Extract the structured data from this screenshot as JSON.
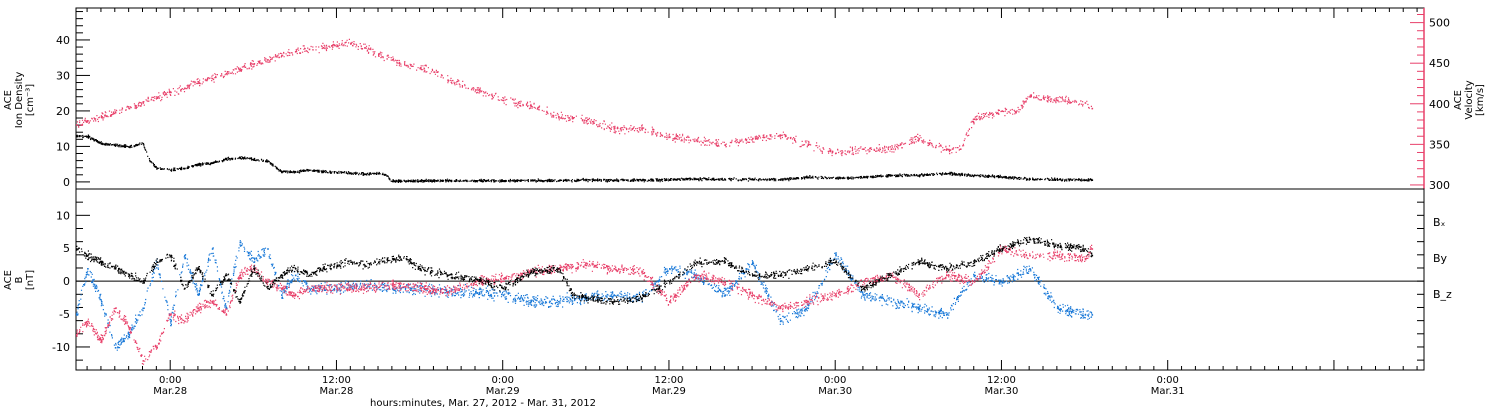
{
  "figure": {
    "xlabel": "hours:minutes, Mar. 27, 2012 - Mar. 31, 2012",
    "time_range_hours": [
      -6.8,
      90.5
    ]
  },
  "x_ticks": [
    {
      "t": 0,
      "time": "0:00",
      "date": "Mar.28"
    },
    {
      "t": 12,
      "time": "12:00",
      "date": "Mar.28"
    },
    {
      "t": 24,
      "time": "0:00",
      "date": "Mar.29"
    },
    {
      "t": 36,
      "time": "12:00",
      "date": "Mar.29"
    },
    {
      "t": 48,
      "time": "0:00",
      "date": "Mar.30"
    },
    {
      "t": 60,
      "time": "12:00",
      "date": "Mar.30"
    },
    {
      "t": 72,
      "time": "0:00",
      "date": "Mar.31"
    }
  ],
  "colors": {
    "black": "#000000",
    "red": "#e8406a",
    "blue": "#1878d8",
    "axis": "#000000"
  },
  "chart_data": [
    {
      "type": "scatter",
      "panel": "top",
      "ylabel": [
        "ACE",
        "Ion Density",
        "[cm⁻³]"
      ],
      "ylim": [
        -2,
        49
      ],
      "yticks": [
        0,
        10,
        20,
        30,
        40
      ],
      "right_axis": {
        "ylabel": [
          "ACE",
          "Velocity",
          "[km/s]"
        ],
        "ylim": [
          295,
          518
        ],
        "yticks": [
          300,
          350,
          400,
          450,
          500
        ]
      },
      "series": [
        {
          "color": "black",
          "axis": "left",
          "x": [
            -6.8,
            -6.0,
            -5.0,
            -4.0,
            -3.0,
            -2.0,
            -1.5,
            -1.0,
            0.0,
            1.0,
            2.0,
            3.0,
            4.0,
            5.0,
            6.0,
            7.0,
            8.0,
            9.0,
            10.0,
            11.0,
            12.0,
            13.0,
            14.0,
            15.0,
            15.5,
            16.0,
            18.0,
            20.0,
            22.0,
            24.0,
            26.0,
            28.0,
            30.0,
            32.0,
            34.0,
            36.0,
            38.0,
            40.0,
            42.0,
            44.0,
            46.0,
            48.0,
            50.0,
            52.0,
            54.0,
            56.0,
            58.0,
            60.0,
            62.0,
            64.0,
            66.0,
            66.5
          ],
          "y": [
            13.0,
            13.0,
            11.0,
            10.5,
            10.0,
            11.0,
            6.0,
            4.0,
            3.5,
            4.0,
            5.0,
            5.5,
            6.5,
            7.0,
            6.5,
            6.0,
            3.0,
            3.0,
            3.5,
            3.0,
            2.8,
            2.6,
            2.4,
            2.5,
            2.2,
            0.4,
            0.4,
            0.5,
            0.5,
            0.5,
            0.6,
            0.5,
            0.7,
            0.6,
            0.6,
            0.8,
            1.0,
            0.9,
            0.9,
            0.8,
            1.5,
            1.2,
            1.5,
            2.0,
            2.0,
            2.5,
            2.0,
            1.5,
            1.0,
            0.8,
            0.7,
            0.7
          ]
        },
        {
          "color": "red",
          "axis": "right",
          "x": [
            -6.8,
            -6.0,
            -5.0,
            -4.0,
            -3.0,
            -2.0,
            -1.0,
            0.0,
            1.0,
            2.0,
            3.0,
            4.0,
            5.0,
            6.0,
            7.0,
            8.0,
            9.0,
            10.0,
            11.0,
            12.0,
            13.0,
            14.0,
            15.0,
            16.0,
            17.0,
            18.0,
            19.0,
            20.0,
            22.0,
            24.0,
            26.0,
            28.0,
            30.0,
            32.0,
            34.0,
            36.0,
            38.0,
            40.0,
            42.0,
            44.0,
            46.0,
            48.0,
            50.0,
            52.0,
            54.0,
            56.0,
            57.0,
            58.0,
            60.0,
            61.0,
            62.0,
            64.0,
            66.0,
            66.5
          ],
          "y": [
            375,
            380,
            385,
            390,
            395,
            402,
            408,
            415,
            420,
            428,
            432,
            438,
            442,
            450,
            455,
            460,
            465,
            468,
            470,
            472,
            475,
            470,
            462,
            455,
            448,
            445,
            440,
            430,
            418,
            405,
            398,
            385,
            380,
            370,
            370,
            360,
            355,
            350,
            358,
            362,
            350,
            340,
            345,
            345,
            358,
            345,
            345,
            382,
            392,
            390,
            410,
            405,
            402,
            395
          ]
        }
      ]
    },
    {
      "type": "scatter",
      "panel": "bottom",
      "ylabel": [
        "ACE",
        "B",
        "[nT]"
      ],
      "ylim": [
        -13.5,
        14
      ],
      "yticks": [
        -10,
        -5,
        0,
        5,
        10
      ],
      "legend_position": "right",
      "series": [
        {
          "name": "Bₓ",
          "color": "black",
          "x": [
            -6.8,
            -6.0,
            -5.0,
            -4.0,
            -3.0,
            -2.0,
            -1.0,
            0.0,
            1.0,
            2.0,
            3.0,
            4.0,
            5.0,
            6.0,
            7.0,
            8.0,
            9.0,
            10.0,
            11.0,
            12.0,
            13.0,
            14.0,
            15.0,
            16.0,
            17.0,
            18.0,
            20.0,
            22.0,
            24.0,
            26.0,
            28.0,
            29.0,
            30.0,
            32.0,
            34.0,
            36.0,
            38.0,
            40.0,
            42.0,
            44.0,
            46.0,
            48.0,
            50.0,
            52.0,
            54.0,
            56.0,
            58.0,
            60.0,
            62.0,
            64.0,
            66.0,
            66.5
          ],
          "y": [
            5.0,
            4.0,
            3.0,
            2.0,
            1.0,
            0.0,
            3.0,
            4.0,
            -1.0,
            2.0,
            -2.0,
            1.0,
            -3.0,
            2.0,
            -1.0,
            1.0,
            2.0,
            1.0,
            2.0,
            2.5,
            3.0,
            2.5,
            3.0,
            3.5,
            3.5,
            2.0,
            1.0,
            0.5,
            -1.0,
            1.5,
            2.0,
            -2.0,
            -2.5,
            -3.0,
            -2.5,
            0.0,
            3.0,
            3.0,
            1.0,
            1.0,
            2.0,
            3.0,
            -1.0,
            1.0,
            3.0,
            2.0,
            3.0,
            5.0,
            6.5,
            5.5,
            5.0,
            4.0
          ]
        },
        {
          "name": "By",
          "color": "blue",
          "x": [
            -6.8,
            -6.0,
            -5.0,
            -4.0,
            -3.0,
            -2.0,
            -1.0,
            0.0,
            1.0,
            2.0,
            3.0,
            4.0,
            5.0,
            6.0,
            7.0,
            8.0,
            9.0,
            10.0,
            12.0,
            14.0,
            16.0,
            18.0,
            20.0,
            22.0,
            24.0,
            26.0,
            28.0,
            30.0,
            32.0,
            34.0,
            36.0,
            38.0,
            40.0,
            42.0,
            44.0,
            46.0,
            48.0,
            50.0,
            52.0,
            54.0,
            56.0,
            58.0,
            60.0,
            62.0,
            64.0,
            66.0,
            66.5
          ],
          "y": [
            -5.0,
            2.0,
            -3.0,
            -10.0,
            -8.0,
            -4.0,
            3.0,
            -6.0,
            4.0,
            -2.0,
            5.0,
            -4.0,
            6.0,
            3.0,
            5.0,
            -2.0,
            1.0,
            -1.0,
            -1.0,
            -0.5,
            -1.0,
            -1.0,
            -1.5,
            -1.5,
            -2.0,
            -3.0,
            -3.0,
            -2.5,
            -2.0,
            -2.5,
            2.0,
            1.0,
            -2.0,
            3.0,
            -6.0,
            -4.0,
            4.0,
            -2.0,
            -3.0,
            -4.0,
            -5.0,
            1.0,
            0.0,
            2.0,
            -4.0,
            -5.0,
            -5.0
          ]
        },
        {
          "name": "B_z",
          "color": "red",
          "x": [
            -6.8,
            -6.0,
            -5.0,
            -4.0,
            -3.0,
            -2.0,
            -1.0,
            0.0,
            1.0,
            2.0,
            3.0,
            4.0,
            5.0,
            6.0,
            7.0,
            8.0,
            9.0,
            10.0,
            12.0,
            14.0,
            16.0,
            18.0,
            20.0,
            22.0,
            24.0,
            26.0,
            28.0,
            30.0,
            32.0,
            34.0,
            36.0,
            38.0,
            40.0,
            42.0,
            44.0,
            46.0,
            48.0,
            50.0,
            52.0,
            54.0,
            56.0,
            58.0,
            60.0,
            62.0,
            64.0,
            66.0,
            66.5
          ],
          "y": [
            -8.0,
            -6.0,
            -9.0,
            -4.0,
            -7.0,
            -12.0,
            -10.0,
            -5.0,
            -6.0,
            -4.0,
            -3.0,
            -5.0,
            1.0,
            2.0,
            0.0,
            -1.0,
            -2.0,
            -1.0,
            -1.0,
            -1.0,
            -0.5,
            -1.0,
            -1.5,
            0.0,
            0.5,
            1.5,
            2.0,
            2.5,
            2.0,
            1.5,
            -3.0,
            1.0,
            0.0,
            -2.0,
            -4.0,
            -3.0,
            -2.0,
            0.0,
            1.0,
            -2.0,
            1.0,
            0.0,
            5.0,
            4.0,
            4.0,
            3.5,
            5.0
          ]
        }
      ]
    }
  ]
}
